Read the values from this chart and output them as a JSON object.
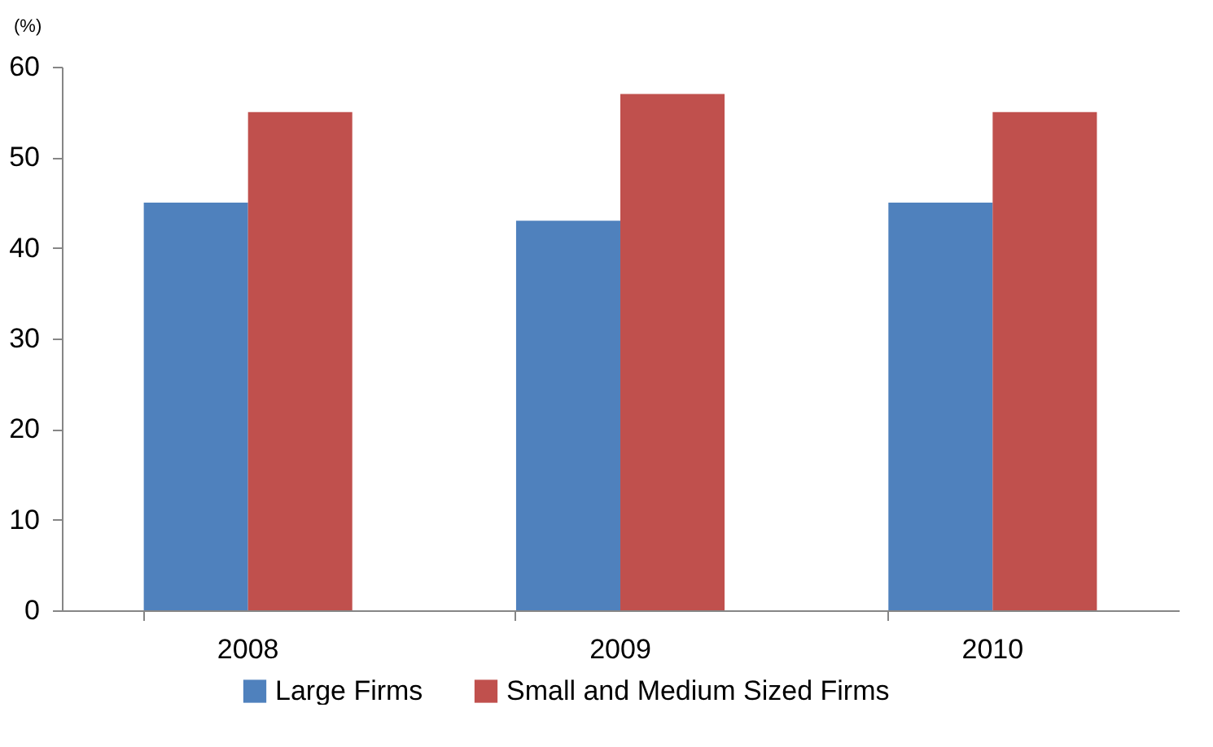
{
  "chart_data": {
    "type": "bar",
    "ylabel": "(%)",
    "categories": [
      "2008",
      "2009",
      "2010"
    ],
    "series": [
      {
        "name": "Large Firms",
        "color": "#4f81bd",
        "values": [
          45,
          43,
          45
        ]
      },
      {
        "name": "Small and Medium Sized Firms",
        "color": "#c0504d",
        "values": [
          55,
          57,
          55
        ]
      }
    ],
    "ylim": [
      0,
      60
    ],
    "yticks": [
      0,
      10,
      20,
      30,
      40,
      50,
      60
    ],
    "grid": false,
    "legend": "bottom"
  }
}
